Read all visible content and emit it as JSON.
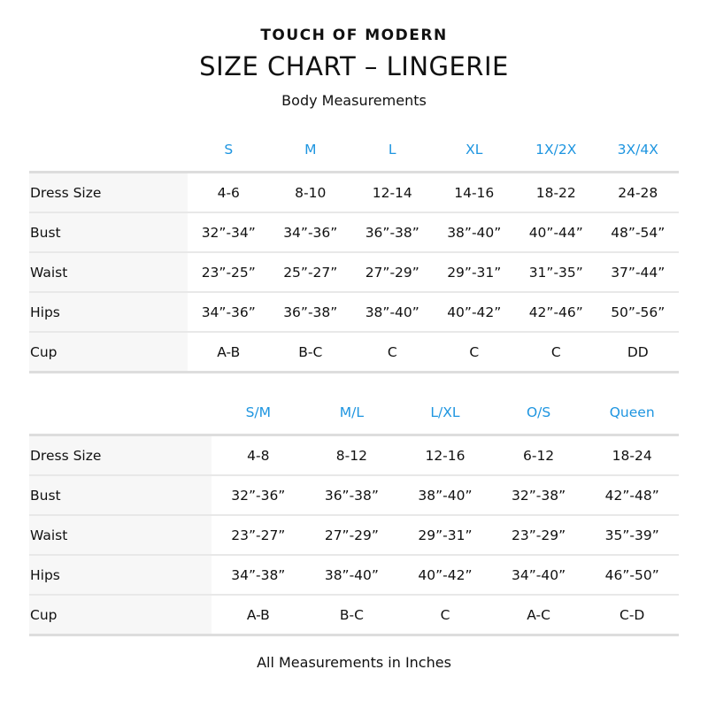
{
  "brand": "TOUCH OF MODERN",
  "title": "SIZE CHART – LINGERIE",
  "subtitle": "Body Measurements",
  "footer": "All Measurements in Inches",
  "accent_color": "#1e95e0",
  "tables": [
    {
      "headers": [
        "S",
        "M",
        "L",
        "XL",
        "1X/2X",
        "3X/4X"
      ],
      "rows": [
        {
          "label": "Dress Size",
          "values": [
            "4-6",
            "8-10",
            "12-14",
            "14-16",
            "18-22",
            "24-28"
          ]
        },
        {
          "label": "Bust",
          "values": [
            "32”-34”",
            "34”-36”",
            "36”-38”",
            "38”-40”",
            "40”-44”",
            "48”-54”"
          ]
        },
        {
          "label": "Waist",
          "values": [
            "23”-25”",
            "25”-27”",
            "27”-29”",
            "29”-31”",
            "31”-35”",
            "37”-44”"
          ]
        },
        {
          "label": "Hips",
          "values": [
            "34”-36”",
            "36”-38”",
            "38”-40”",
            "40”-42”",
            "42”-46”",
            "50”-56”"
          ]
        },
        {
          "label": "Cup",
          "values": [
            "A-B",
            "B-C",
            "C",
            "C",
            "C",
            "DD"
          ]
        }
      ]
    },
    {
      "headers": [
        "S/M",
        "M/L",
        "L/XL",
        "O/S",
        "Queen"
      ],
      "rows": [
        {
          "label": "Dress Size",
          "values": [
            "4-8",
            "8-12",
            "12-16",
            "6-12",
            "18-24"
          ]
        },
        {
          "label": "Bust",
          "values": [
            "32”-36”",
            "36”-38”",
            "38”-40”",
            "32”-38”",
            "42”-48”"
          ]
        },
        {
          "label": "Waist",
          "values": [
            "23”-27”",
            "27”-29”",
            "29”-31”",
            "23”-29”",
            "35”-39”"
          ]
        },
        {
          "label": "Hips",
          "values": [
            "34”-38”",
            "38”-40”",
            "40”-42”",
            "34”-40”",
            "46”-50”"
          ]
        },
        {
          "label": "Cup",
          "values": [
            "A-B",
            "B-C",
            "C",
            "A-C",
            "C-D"
          ]
        }
      ]
    }
  ]
}
